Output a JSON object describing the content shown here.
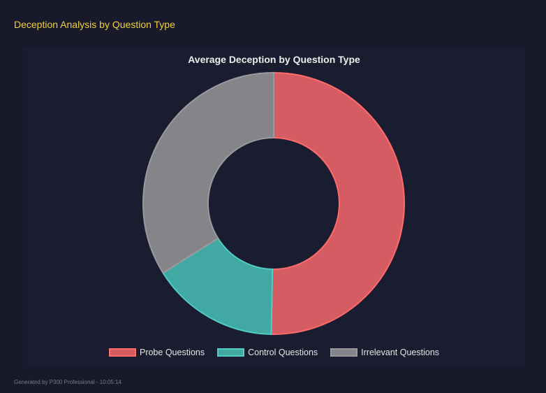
{
  "header": {
    "title": "Deception Analysis by Question Type"
  },
  "chart_data": {
    "type": "pie",
    "variant": "doughnut",
    "title": "Average Deception by Question Type",
    "categories": [
      "Probe Questions",
      "Control Questions",
      "Irrelevant Questions"
    ],
    "values": [
      50.3,
      15.8,
      33.9
    ],
    "colors": [
      "#d45c62",
      "#41a8a4",
      "#858489"
    ],
    "border_colors": [
      "#ff6b6b",
      "#4ecdc4",
      "#9a9a9e"
    ],
    "legend": "bottom"
  },
  "footer": {
    "text": "Generated by P300 Professional - 10:05:14"
  }
}
